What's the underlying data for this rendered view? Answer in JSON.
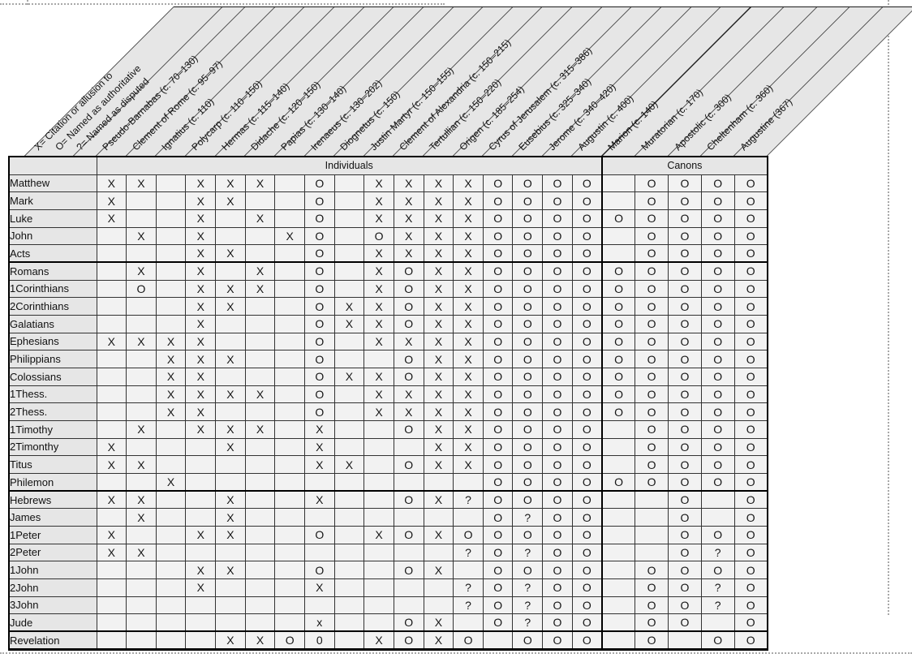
{
  "chart_data": {
    "type": "table",
    "legend": [
      "X= Citation or allusion to",
      "O= Named as authoritative",
      "?= Named as disputed"
    ],
    "column_groups": [
      {
        "label": "Individuals",
        "span": 17
      },
      {
        "label": "Canons",
        "span": 5
      }
    ],
    "columns": [
      "Pseudo-Barnabas (c. 70–130)",
      "Clement of Rome (c. 95–97)",
      "Ignatius (c. 110)",
      "Polycarp (c. 110–150)",
      "Hermas (c. 115–140)",
      "Didache (c. 120–150)",
      "Papias (c. 130–140)",
      "Irenaeus (c. 130–202)",
      "Diognetus (c. 150)",
      "Justin Martyr (c. 150–155)",
      "Clement of Alexandria (c. 150–215)",
      "Tertullian (c. 150–220)",
      "Origen (c. 185–254)",
      "Cyrus of Jerusalem (c. 315–386)",
      "Eusebius (c. 325–340)",
      "Jerome (c. 340–420)",
      "Augustin (c. 400)",
      "Marion (c. 140)",
      "Muratorian (c. 170)",
      "Apostolic (c. 300)",
      "Cheltenham (c. 360)",
      "Augustine (367)"
    ],
    "rows": [
      {
        "label": "Matthew",
        "marks": [
          "X",
          "X",
          "",
          "X",
          "X",
          "X",
          "",
          "O",
          "",
          "X",
          "X",
          "X",
          "X",
          "O",
          "O",
          "O",
          "O",
          "",
          "O",
          "O",
          "O",
          "O"
        ]
      },
      {
        "label": "Mark",
        "marks": [
          "X",
          "",
          "",
          "X",
          "X",
          "",
          "",
          "O",
          "",
          "X",
          "X",
          "X",
          "X",
          "O",
          "O",
          "O",
          "O",
          "",
          "O",
          "O",
          "O",
          "O"
        ]
      },
      {
        "label": "Luke",
        "marks": [
          "X",
          "",
          "",
          "X",
          "",
          "X",
          "",
          "O",
          "",
          "X",
          "X",
          "X",
          "X",
          "O",
          "O",
          "O",
          "O",
          "O",
          "O",
          "O",
          "O",
          "O"
        ]
      },
      {
        "label": "John",
        "marks": [
          "",
          "X",
          "",
          "X",
          "",
          "",
          "X",
          "O",
          "",
          "O",
          "X",
          "X",
          "X",
          "O",
          "O",
          "O",
          "O",
          "",
          "O",
          "O",
          "O",
          "O"
        ]
      },
      {
        "label": "Acts",
        "marks": [
          "",
          "",
          "",
          "X",
          "X",
          "",
          "",
          "O",
          "",
          "X",
          "X",
          "X",
          "X",
          "O",
          "O",
          "O",
          "O",
          "",
          "O",
          "O",
          "O",
          "O"
        ]
      },
      {
        "label": "Romans",
        "marks": [
          "",
          "X",
          "",
          "X",
          "",
          "X",
          "",
          "O",
          "",
          "X",
          "O",
          "X",
          "X",
          "O",
          "O",
          "O",
          "O",
          "O",
          "O",
          "O",
          "O",
          "O"
        ]
      },
      {
        "label": "1Corinthians",
        "marks": [
          "",
          "O",
          "",
          "X",
          "X",
          "X",
          "",
          "O",
          "",
          "X",
          "O",
          "X",
          "X",
          "O",
          "O",
          "O",
          "O",
          "O",
          "O",
          "O",
          "O",
          "O"
        ]
      },
      {
        "label": "2Corinthians",
        "marks": [
          "",
          "",
          "",
          "X",
          "X",
          "",
          "",
          "O",
          "X",
          "X",
          "O",
          "X",
          "X",
          "O",
          "O",
          "O",
          "O",
          "O",
          "O",
          "O",
          "O",
          "O"
        ]
      },
      {
        "label": "Galatians",
        "marks": [
          "",
          "",
          "",
          "X",
          "",
          "",
          "",
          "O",
          "X",
          "X",
          "O",
          "X",
          "X",
          "O",
          "O",
          "O",
          "O",
          "O",
          "O",
          "O",
          "O",
          "O"
        ]
      },
      {
        "label": "Ephesians",
        "marks": [
          "X",
          "X",
          "X",
          "X",
          "",
          "",
          "",
          "O",
          "",
          "X",
          "X",
          "X",
          "X",
          "O",
          "O",
          "O",
          "O",
          "O",
          "O",
          "O",
          "O",
          "O"
        ]
      },
      {
        "label": "Philippians",
        "marks": [
          "",
          "",
          "X",
          "X",
          "X",
          "",
          "",
          "O",
          "",
          "",
          "O",
          "X",
          "X",
          "O",
          "O",
          "O",
          "O",
          "O",
          "O",
          "O",
          "O",
          "O"
        ]
      },
      {
        "label": "Colossians",
        "marks": [
          "",
          "",
          "X",
          "X",
          "",
          "",
          "",
          "O",
          "X",
          "X",
          "O",
          "X",
          "X",
          "O",
          "O",
          "O",
          "O",
          "O",
          "O",
          "O",
          "O",
          "O"
        ]
      },
      {
        "label": "1Thess.",
        "marks": [
          "",
          "",
          "X",
          "X",
          "X",
          "X",
          "",
          "O",
          "",
          "X",
          "X",
          "X",
          "X",
          "O",
          "O",
          "O",
          "O",
          "O",
          "O",
          "O",
          "O",
          "O"
        ]
      },
      {
        "label": "2Thess.",
        "marks": [
          "",
          "",
          "X",
          "X",
          "",
          "",
          "",
          "O",
          "",
          "X",
          "X",
          "X",
          "X",
          "O",
          "O",
          "O",
          "O",
          "O",
          "O",
          "O",
          "O",
          "O"
        ]
      },
      {
        "label": "1Timothy",
        "marks": [
          "",
          "X",
          "",
          "X",
          "X",
          "X",
          "",
          "X",
          "",
          "",
          "O",
          "X",
          "X",
          "O",
          "O",
          "O",
          "O",
          "",
          "O",
          "O",
          "O",
          "O"
        ]
      },
      {
        "label": "2Timonthy",
        "marks": [
          "X",
          "",
          "",
          "",
          "X",
          "",
          "",
          "X",
          "",
          "",
          "",
          "X",
          "X",
          "O",
          "O",
          "O",
          "O",
          "",
          "O",
          "O",
          "O",
          "O"
        ]
      },
      {
        "label": "Titus",
        "marks": [
          "X",
          "X",
          "",
          "",
          "",
          "",
          "",
          "X",
          "X",
          "",
          "O",
          "X",
          "X",
          "O",
          "O",
          "O",
          "O",
          "",
          "O",
          "O",
          "O",
          "O"
        ]
      },
      {
        "label": "Philemon",
        "marks": [
          "",
          "",
          "X",
          "",
          "",
          "",
          "",
          "",
          "",
          "",
          "",
          "",
          "",
          "O",
          "O",
          "O",
          "O",
          "O",
          "O",
          "O",
          "O",
          "O"
        ]
      },
      {
        "label": "Hebrews",
        "marks": [
          "X",
          "X",
          "",
          "",
          "X",
          "",
          "",
          "X",
          "",
          "",
          "O",
          "X",
          "?",
          "O",
          "O",
          "O",
          "O",
          "",
          "",
          "O",
          "",
          "O"
        ]
      },
      {
        "label": "James",
        "marks": [
          "",
          "X",
          "",
          "",
          "X",
          "",
          "",
          "",
          "",
          "",
          "",
          "",
          "",
          "O",
          "?",
          "O",
          "O",
          "",
          "",
          "O",
          "",
          "O"
        ]
      },
      {
        "label": "1Peter",
        "marks": [
          "X",
          "",
          "",
          "X",
          "X",
          "",
          "",
          "O",
          "",
          "X",
          "O",
          "X",
          "O",
          "O",
          "O",
          "O",
          "O",
          "",
          "",
          "O",
          "O",
          "O"
        ]
      },
      {
        "label": "2Peter",
        "marks": [
          "X",
          "X",
          "",
          "",
          "",
          "",
          "",
          "",
          "",
          "",
          "",
          "",
          "?",
          "O",
          "?",
          "O",
          "O",
          "",
          "",
          "O",
          "?",
          "O"
        ]
      },
      {
        "label": "1John",
        "marks": [
          "",
          "",
          "",
          "X",
          "X",
          "",
          "",
          "O",
          "",
          "",
          "O",
          "X",
          "",
          "O",
          "O",
          "O",
          "O",
          "",
          "O",
          "O",
          "O",
          "O"
        ]
      },
      {
        "label": "2John",
        "marks": [
          "",
          "",
          "",
          "X",
          "",
          "",
          "",
          "X",
          "",
          "",
          "",
          "",
          "?",
          "O",
          "?",
          "O",
          "O",
          "",
          "O",
          "O",
          "?",
          "O"
        ]
      },
      {
        "label": "3John",
        "marks": [
          "",
          "",
          "",
          "",
          "",
          "",
          "",
          "",
          "",
          "",
          "",
          "",
          "?",
          "O",
          "?",
          "O",
          "O",
          "",
          "O",
          "O",
          "?",
          "O"
        ]
      },
      {
        "label": "Jude",
        "marks": [
          "",
          "",
          "",
          "",
          "",
          "",
          "",
          "x",
          "",
          "",
          "O",
          "X",
          "",
          "O",
          "?",
          "O",
          "O",
          "",
          "O",
          "O",
          "",
          "O"
        ]
      },
      {
        "label": "Revelation",
        "marks": [
          "",
          "",
          "",
          "",
          "X",
          "X",
          "O",
          "0",
          "",
          "X",
          "O",
          "X",
          "O",
          "",
          "O",
          "O",
          "O",
          "",
          "O",
          "",
          "O",
          "O"
        ]
      }
    ],
    "colors": {
      "band_bg": "#e6e6e6",
      "label_bg": "#e6e6e6",
      "cell_bg": "#f2f2f2",
      "grid_line": "#333333",
      "thick_line": "#000000",
      "text": "#161616"
    }
  }
}
